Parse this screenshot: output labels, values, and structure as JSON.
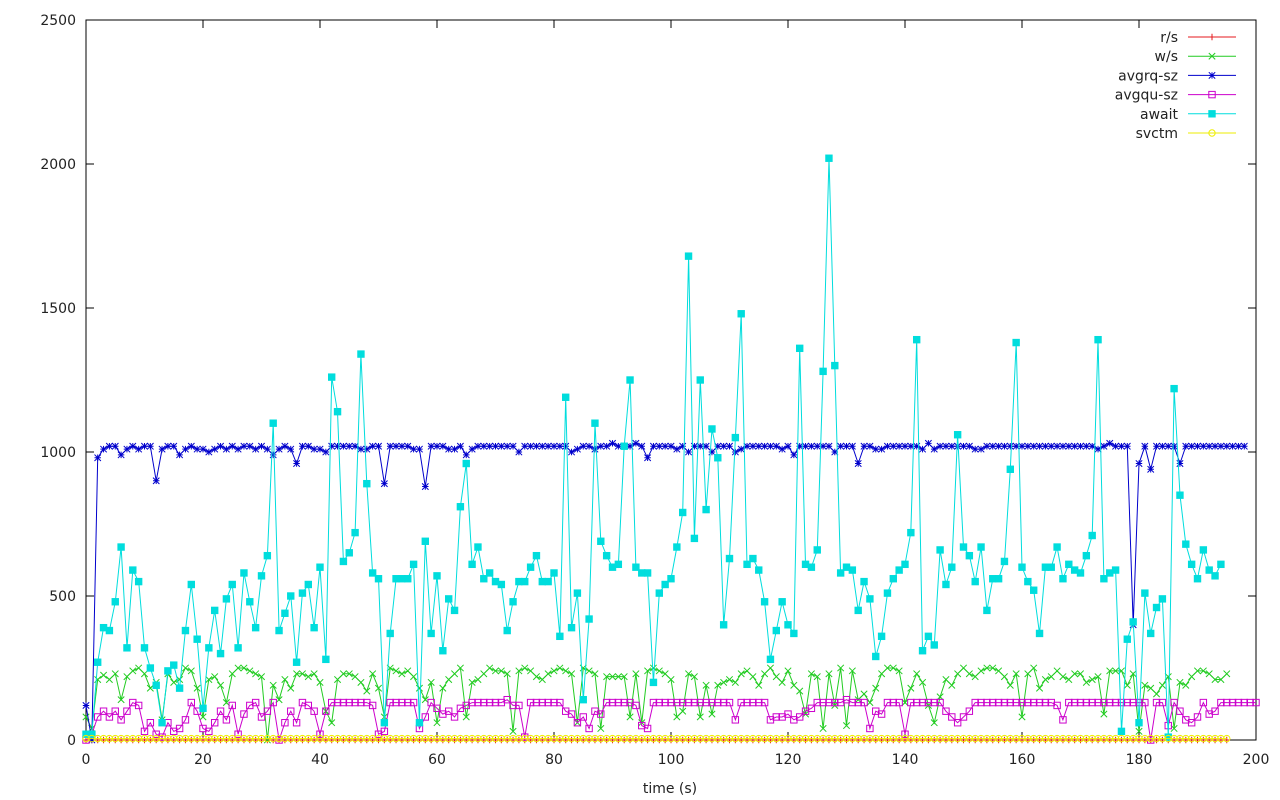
{
  "chart_data": {
    "type": "line",
    "title": "",
    "xlabel": "time (s)",
    "ylabel": "",
    "xlim": [
      0,
      200
    ],
    "ylim": [
      0,
      2500
    ],
    "xticks": [
      0,
      20,
      40,
      60,
      80,
      100,
      120,
      140,
      160,
      180,
      200
    ],
    "yticks": [
      0,
      500,
      1000,
      1500,
      2000,
      2500
    ],
    "grid": false,
    "legend_position": "top-right",
    "series": [
      {
        "name": "r/s",
        "color": "#e41a1c",
        "marker": "plus",
        "style": "constant",
        "x_start": 0,
        "x_end": 195,
        "x_step": 1,
        "value": 0
      },
      {
        "name": "w/s",
        "color": "#22cc22",
        "marker": "cross",
        "style": "dense",
        "x_start": 0,
        "x_step": 1,
        "values": [
          80,
          40,
          210,
          225,
          210,
          230,
          140,
          220,
          240,
          250,
          230,
          180,
          200,
          70,
          230,
          200,
          210,
          250,
          240,
          180,
          80,
          210,
          220,
          190,
          130,
          230,
          250,
          250,
          240,
          230,
          220,
          0,
          190,
          140,
          210,
          180,
          230,
          230,
          220,
          230,
          200,
          100,
          60,
          210,
          230,
          230,
          220,
          200,
          170,
          230,
          180,
          80,
          250,
          240,
          230,
          240,
          220,
          180,
          140,
          200,
          60,
          180,
          210,
          230,
          250,
          80,
          200,
          210,
          230,
          250,
          240,
          240,
          230,
          30,
          240,
          250,
          240,
          220,
          210,
          230,
          240,
          250,
          240,
          230,
          60,
          250,
          240,
          230,
          40,
          220,
          220,
          220,
          220,
          80,
          230,
          60,
          240,
          250,
          240,
          230,
          210,
          80,
          100,
          230,
          220,
          80,
          190,
          90,
          190,
          200,
          210,
          200,
          230,
          240,
          220,
          190,
          230,
          250,
          220,
          200,
          240,
          190,
          170,
          90,
          230,
          220,
          40,
          230,
          120,
          250,
          50,
          240,
          140,
          160,
          130,
          180,
          230,
          250,
          250,
          240,
          130,
          180,
          230,
          200,
          120,
          60,
          150,
          210,
          190,
          230,
          250,
          230,
          220,
          240,
          250,
          250,
          240,
          220,
          190,
          230,
          80,
          230,
          250,
          180,
          210,
          220,
          240,
          220,
          210,
          230,
          230,
          200,
          210,
          220,
          90,
          240,
          240,
          240,
          190,
          230,
          30,
          190,
          180,
          160,
          190,
          220,
          40,
          200,
          190,
          220,
          240,
          240,
          230,
          210,
          210,
          230
        ]
      },
      {
        "name": "avgrq-sz",
        "color": "#0000cc",
        "marker": "star",
        "style": "dense",
        "x_start": 0,
        "x_step": 1,
        "values": [
          120,
          0,
          980,
          1010,
          1020,
          1020,
          990,
          1010,
          1020,
          1010,
          1020,
          1020,
          900,
          1010,
          1020,
          1020,
          990,
          1010,
          1020,
          1010,
          1010,
          1000,
          1010,
          1020,
          1010,
          1020,
          1010,
          1020,
          1020,
          1010,
          1020,
          1010,
          990,
          1010,
          1020,
          1010,
          960,
          1020,
          1020,
          1010,
          1010,
          1000,
          1020,
          1020,
          1020,
          1020,
          1020,
          1010,
          1010,
          1020,
          1020,
          890,
          1020,
          1020,
          1020,
          1020,
          1010,
          1010,
          880,
          1020,
          1020,
          1020,
          1010,
          1010,
          1020,
          990,
          1010,
          1020,
          1020,
          1020,
          1020,
          1020,
          1020,
          1020,
          1000,
          1020,
          1020,
          1020,
          1020,
          1020,
          1020,
          1020,
          1020,
          1000,
          1010,
          1020,
          1020,
          1010,
          1020,
          1020,
          1030,
          1020,
          1020,
          1020,
          1030,
          1020,
          980,
          1020,
          1020,
          1020,
          1020,
          1010,
          1020,
          1000,
          1020,
          1020,
          1020,
          1000,
          1020,
          1020,
          1020,
          1000,
          1010,
          1020,
          1020,
          1020,
          1020,
          1020,
          1020,
          1010,
          1020,
          990,
          1020,
          1020,
          1020,
          1020,
          1020,
          1020,
          1000,
          1020,
          1020,
          1020,
          960,
          1020,
          1020,
          1010,
          1010,
          1020,
          1020,
          1020,
          1020,
          1020,
          1020,
          1010,
          1030,
          1010,
          1020,
          1020,
          1020,
          1020,
          1020,
          1020,
          1010,
          1010,
          1020,
          1020,
          1020,
          1020,
          1020,
          1020,
          1020,
          1020,
          1020,
          1020,
          1020,
          1020,
          1020,
          1020,
          1020,
          1020,
          1020,
          1020,
          1020,
          1010,
          1020,
          1030,
          1020,
          1020,
          1020,
          400,
          960,
          1020,
          940,
          1020,
          1020,
          1020,
          1020,
          960,
          1020,
          1020,
          1020,
          1020,
          1020,
          1020,
          1020,
          1020,
          1020,
          1020,
          1020
        ]
      },
      {
        "name": "avgqu-sz",
        "color": "#cc00cc",
        "marker": "square",
        "style": "dense",
        "x_start": 0,
        "x_step": 1,
        "values": [
          0,
          20,
          80,
          100,
          80,
          100,
          70,
          100,
          130,
          120,
          30,
          60,
          20,
          10,
          60,
          30,
          40,
          70,
          130,
          100,
          40,
          30,
          60,
          100,
          70,
          120,
          20,
          90,
          120,
          130,
          80,
          100,
          130,
          0,
          60,
          100,
          60,
          130,
          120,
          100,
          20,
          100,
          130,
          130,
          130,
          130,
          130,
          130,
          130,
          120,
          20,
          30,
          130,
          130,
          130,
          130,
          130,
          40,
          80,
          130,
          110,
          90,
          100,
          80,
          110,
          120,
          130,
          130,
          130,
          130,
          130,
          130,
          140,
          120,
          120,
          10,
          130,
          130,
          130,
          130,
          130,
          130,
          100,
          90,
          60,
          80,
          40,
          100,
          90,
          130,
          130,
          130,
          130,
          130,
          120,
          50,
          40,
          130,
          130,
          130,
          130,
          130,
          130,
          130,
          130,
          130,
          130,
          130,
          130,
          130,
          130,
          70,
          130,
          130,
          130,
          130,
          130,
          70,
          80,
          80,
          90,
          70,
          80,
          100,
          110,
          130,
          130,
          130,
          130,
          130,
          140,
          130,
          130,
          130,
          40,
          100,
          90,
          130,
          130,
          130,
          20,
          130,
          130,
          130,
          130,
          130,
          130,
          100,
          80,
          60,
          80,
          100,
          130,
          130,
          130,
          130,
          130,
          130,
          130,
          130,
          130,
          130,
          130,
          130,
          130,
          130,
          120,
          70,
          130,
          130,
          130,
          130,
          130,
          130,
          130,
          130,
          130,
          130,
          130,
          130,
          130,
          130,
          0,
          130,
          130,
          50,
          130,
          100,
          70,
          60,
          80,
          130,
          90,
          100,
          130,
          130,
          130,
          130,
          130,
          130,
          130
        ]
      },
      {
        "name": "await",
        "color": "#00dddd",
        "marker": "filled-square",
        "style": "dense",
        "x_start": 0,
        "x_step": 1,
        "values": [
          20,
          20,
          270,
          390,
          380,
          480,
          670,
          320,
          590,
          550,
          320,
          250,
          190,
          60,
          240,
          260,
          180,
          380,
          540,
          350,
          110,
          320,
          450,
          300,
          490,
          540,
          320,
          580,
          480,
          390,
          570,
          640,
          1100,
          380,
          440,
          500,
          270,
          510,
          540,
          390,
          600,
          280,
          1260,
          1140,
          620,
          650,
          720,
          1340,
          890,
          580,
          560,
          60,
          370,
          560,
          560,
          560,
          610,
          60,
          690,
          370,
          570,
          310,
          490,
          450,
          810,
          960,
          610,
          670,
          560,
          580,
          550,
          540,
          380,
          480,
          550,
          550,
          600,
          640,
          550,
          550,
          580,
          360,
          1190,
          390,
          510,
          140,
          420,
          1100,
          690,
          640,
          600,
          610,
          1020,
          1250,
          600,
          580,
          580,
          200,
          510,
          540,
          560,
          670,
          790,
          1680,
          700,
          1250,
          800,
          1080,
          980,
          400,
          630,
          1050,
          1480,
          610,
          630,
          590,
          480,
          280,
          380,
          480,
          400,
          370,
          1360,
          610,
          600,
          660,
          1280,
          2020,
          1300,
          580,
          600,
          590,
          450,
          550,
          490,
          290,
          360,
          510,
          560,
          590,
          610,
          720,
          1390,
          310,
          360,
          330,
          660,
          540,
          600,
          1060,
          670,
          640,
          550,
          670,
          450,
          560,
          560,
          620,
          940,
          1380,
          600,
          550,
          520,
          370,
          600,
          600,
          670,
          560,
          610,
          590,
          580,
          640,
          710,
          1390,
          560,
          580,
          590,
          30,
          350,
          410,
          60,
          510,
          370,
          460,
          490,
          10,
          1220,
          850,
          680,
          610,
          560,
          660,
          590,
          570,
          610
        ]
      },
      {
        "name": "svctm",
        "color": "#eeee00",
        "marker": "circle",
        "style": "constant",
        "x_start": 0,
        "x_end": 195,
        "x_step": 1,
        "value": 5
      }
    ]
  }
}
